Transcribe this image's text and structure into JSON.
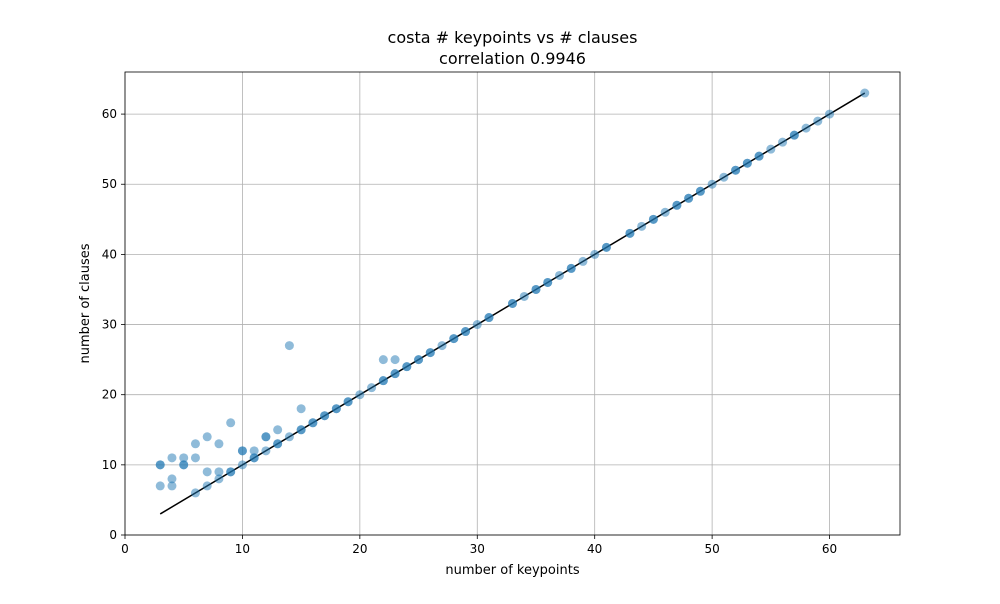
{
  "chart_data": {
    "type": "scatter",
    "title": "costa # keypoints vs # clauses",
    "subtitle": "correlation 0.9946",
    "xlabel": "number of keypoints",
    "ylabel": "number of clauses",
    "xlim": [
      0,
      66
    ],
    "ylim": [
      0,
      66
    ],
    "xticks": [
      0,
      10,
      20,
      30,
      40,
      50,
      60
    ],
    "yticks": [
      0,
      10,
      20,
      30,
      40,
      50,
      60
    ],
    "grid": true,
    "colors": {
      "points": "#1f77b4",
      "fit_line": "#000000",
      "grid": "#b0b0b0",
      "axes": "#000000"
    },
    "fit_line": {
      "x": [
        3,
        63
      ],
      "y": [
        3,
        63
      ]
    },
    "series": [
      {
        "points": [
          [
            3,
            10
          ],
          [
            3,
            10
          ],
          [
            3,
            7
          ],
          [
            4,
            11
          ],
          [
            4,
            8
          ],
          [
            4,
            7
          ],
          [
            5,
            11
          ],
          [
            5,
            10
          ],
          [
            5,
            10
          ],
          [
            6,
            13
          ],
          [
            6,
            11
          ],
          [
            6,
            6
          ],
          [
            7,
            14
          ],
          [
            7,
            9
          ],
          [
            7,
            7
          ],
          [
            8,
            13
          ],
          [
            8,
            9
          ],
          [
            8,
            8
          ],
          [
            9,
            16
          ],
          [
            9,
            9
          ],
          [
            9,
            9
          ],
          [
            10,
            12
          ],
          [
            10,
            12
          ],
          [
            10,
            10
          ],
          [
            11,
            12
          ],
          [
            11,
            11
          ],
          [
            11,
            11
          ],
          [
            12,
            14
          ],
          [
            12,
            14
          ],
          [
            12,
            12
          ],
          [
            13,
            15
          ],
          [
            13,
            13
          ],
          [
            13,
            13
          ],
          [
            14,
            27
          ],
          [
            14,
            14
          ],
          [
            15,
            18
          ],
          [
            15,
            15
          ],
          [
            15,
            15
          ],
          [
            16,
            16
          ],
          [
            16,
            16
          ],
          [
            17,
            17
          ],
          [
            17,
            17
          ],
          [
            18,
            18
          ],
          [
            18,
            18
          ],
          [
            19,
            19
          ],
          [
            19,
            19
          ],
          [
            20,
            20
          ],
          [
            21,
            21
          ],
          [
            22,
            25
          ],
          [
            22,
            22
          ],
          [
            22,
            22
          ],
          [
            23,
            25
          ],
          [
            23,
            23
          ],
          [
            23,
            23
          ],
          [
            24,
            24
          ],
          [
            24,
            24
          ],
          [
            25,
            25
          ],
          [
            25,
            25
          ],
          [
            26,
            26
          ],
          [
            26,
            26
          ],
          [
            27,
            27
          ],
          [
            28,
            28
          ],
          [
            28,
            28
          ],
          [
            29,
            29
          ],
          [
            29,
            29
          ],
          [
            30,
            30
          ],
          [
            31,
            31
          ],
          [
            31,
            31
          ],
          [
            33,
            33
          ],
          [
            33,
            33
          ],
          [
            34,
            34
          ],
          [
            35,
            35
          ],
          [
            35,
            35
          ],
          [
            36,
            36
          ],
          [
            36,
            36
          ],
          [
            37,
            37
          ],
          [
            38,
            38
          ],
          [
            38,
            38
          ],
          [
            39,
            39
          ],
          [
            40,
            40
          ],
          [
            41,
            41
          ],
          [
            41,
            41
          ],
          [
            43,
            43
          ],
          [
            43,
            43
          ],
          [
            44,
            44
          ],
          [
            45,
            45
          ],
          [
            45,
            45
          ],
          [
            46,
            46
          ],
          [
            47,
            47
          ],
          [
            47,
            47
          ],
          [
            48,
            48
          ],
          [
            48,
            48
          ],
          [
            49,
            49
          ],
          [
            49,
            49
          ],
          [
            50,
            50
          ],
          [
            51,
            51
          ],
          [
            52,
            52
          ],
          [
            52,
            52
          ],
          [
            53,
            53
          ],
          [
            53,
            53
          ],
          [
            54,
            54
          ],
          [
            54,
            54
          ],
          [
            55,
            55
          ],
          [
            56,
            56
          ],
          [
            57,
            57
          ],
          [
            57,
            57
          ],
          [
            58,
            58
          ],
          [
            59,
            59
          ],
          [
            60,
            60
          ],
          [
            63,
            63
          ]
        ]
      }
    ]
  }
}
